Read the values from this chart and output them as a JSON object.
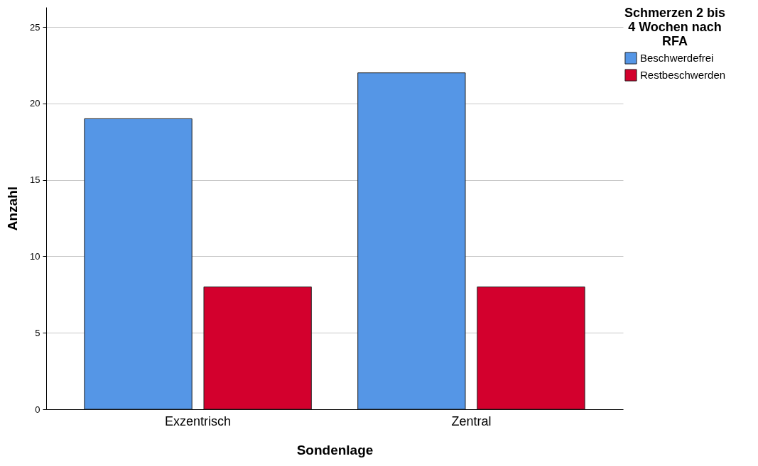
{
  "chart_data": {
    "type": "bar",
    "xlabel": "Sondenlage",
    "ylabel": "Anzahl",
    "legend_title": "Schmerzen 2 bis 4 Wochen nach RFA",
    "categories": [
      "Exzentrisch",
      "Zentral"
    ],
    "series": [
      {
        "name": "Beschwerdefrei",
        "color": "#5596e6",
        "values": [
          19,
          22
        ]
      },
      {
        "name": "Restbeschwerden",
        "color": "#d3002d",
        "values": [
          8,
          8
        ]
      }
    ],
    "ylim": [
      0,
      26.3
    ],
    "yticks": [
      0,
      5,
      10,
      15,
      20,
      25
    ],
    "grid": "y",
    "legend": "top right"
  }
}
